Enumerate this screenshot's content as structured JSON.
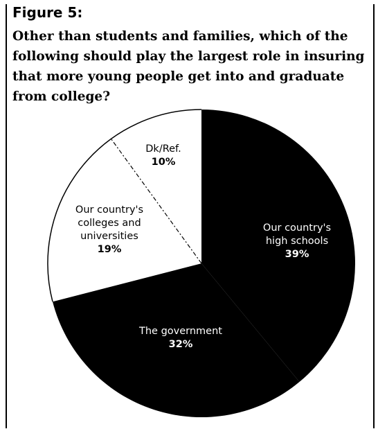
{
  "figure": {
    "label": "Figure 5:",
    "question": "Other than students and families, which of the following should play the largest role in insuring that more young people get into and graduate from college?"
  },
  "chart_data": {
    "type": "pie",
    "title": "Other than students and families, which of the following should play the largest role in insuring that more young people get into and graduate from college?",
    "slices": [
      {
        "label_lines": [
          "Our country's",
          "high schools"
        ],
        "value": 39,
        "value_label": "39%",
        "fill": "#000000",
        "text_color": "#ffffff"
      },
      {
        "label_lines": [
          "The government"
        ],
        "value": 32,
        "value_label": "32%",
        "fill": "#000000",
        "text_color": "#ffffff"
      },
      {
        "label_lines": [
          "Our country's",
          "colleges and",
          "universities"
        ],
        "value": 19,
        "value_label": "19%",
        "fill": "#ffffff",
        "text_color": "#000000"
      },
      {
        "label_lines": [
          "Dk/Ref."
        ],
        "value": 10,
        "value_label": "10%",
        "fill": "#ffffff",
        "text_color": "#000000"
      }
    ]
  }
}
